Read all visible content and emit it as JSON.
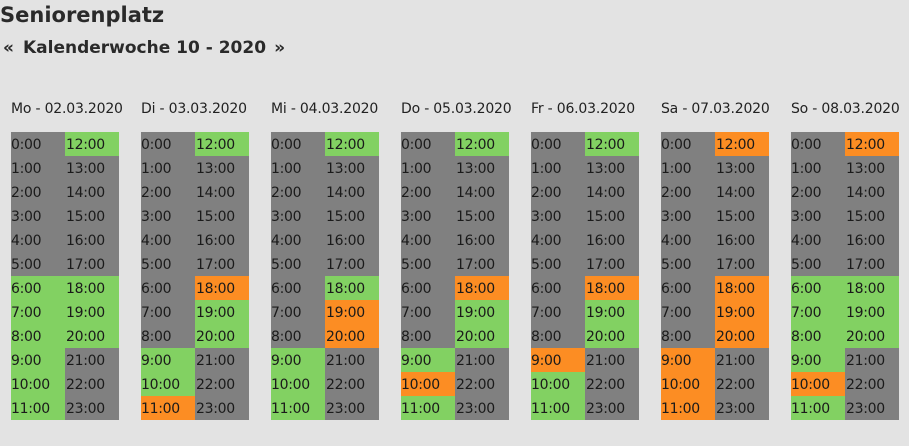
{
  "page": {
    "title": "Seniorenplatz",
    "week_title": "Kalenderwoche 10 - 2020",
    "prev_label": "«",
    "next_label": "»"
  },
  "colors": {
    "gray": "#808080",
    "green": "#82d162",
    "orange": "#fc8d23"
  },
  "days": [
    {
      "label": "Mo - 02.03.2020",
      "states": [
        "gray",
        "gray",
        "gray",
        "gray",
        "gray",
        "gray",
        "green",
        "green",
        "green",
        "green",
        "green",
        "green",
        "green",
        "gray",
        "gray",
        "gray",
        "gray",
        "gray",
        "green",
        "green",
        "green",
        "gray",
        "gray",
        "gray"
      ]
    },
    {
      "label": "Di - 03.03.2020",
      "states": [
        "gray",
        "gray",
        "gray",
        "gray",
        "gray",
        "gray",
        "gray",
        "gray",
        "gray",
        "green",
        "green",
        "orange",
        "green",
        "gray",
        "gray",
        "gray",
        "gray",
        "gray",
        "orange",
        "green",
        "green",
        "gray",
        "gray",
        "gray"
      ]
    },
    {
      "label": "Mi - 04.03.2020",
      "states": [
        "gray",
        "gray",
        "gray",
        "gray",
        "gray",
        "gray",
        "gray",
        "gray",
        "gray",
        "green",
        "green",
        "green",
        "green",
        "gray",
        "gray",
        "gray",
        "gray",
        "gray",
        "green",
        "orange",
        "orange",
        "gray",
        "gray",
        "gray"
      ]
    },
    {
      "label": "Do - 05.03.2020",
      "states": [
        "gray",
        "gray",
        "gray",
        "gray",
        "gray",
        "gray",
        "gray",
        "gray",
        "gray",
        "green",
        "orange",
        "green",
        "green",
        "gray",
        "gray",
        "gray",
        "gray",
        "gray",
        "orange",
        "green",
        "green",
        "gray",
        "gray",
        "gray"
      ]
    },
    {
      "label": "Fr - 06.03.2020",
      "states": [
        "gray",
        "gray",
        "gray",
        "gray",
        "gray",
        "gray",
        "gray",
        "gray",
        "gray",
        "orange",
        "green",
        "green",
        "green",
        "gray",
        "gray",
        "gray",
        "gray",
        "gray",
        "orange",
        "green",
        "green",
        "gray",
        "gray",
        "gray"
      ]
    },
    {
      "label": "Sa - 07.03.2020",
      "states": [
        "gray",
        "gray",
        "gray",
        "gray",
        "gray",
        "gray",
        "gray",
        "gray",
        "gray",
        "orange",
        "orange",
        "orange",
        "orange",
        "gray",
        "gray",
        "gray",
        "gray",
        "gray",
        "orange",
        "orange",
        "orange",
        "gray",
        "gray",
        "gray"
      ]
    },
    {
      "label": "So - 08.03.2020",
      "states": [
        "gray",
        "gray",
        "gray",
        "gray",
        "gray",
        "gray",
        "green",
        "green",
        "green",
        "green",
        "orange",
        "green",
        "orange",
        "gray",
        "gray",
        "gray",
        "gray",
        "gray",
        "green",
        "green",
        "green",
        "gray",
        "gray",
        "gray"
      ]
    }
  ],
  "hours": [
    "0:00",
    "1:00",
    "2:00",
    "3:00",
    "4:00",
    "5:00",
    "6:00",
    "7:00",
    "8:00",
    "9:00",
    "10:00",
    "11:00",
    "12:00",
    "13:00",
    "14:00",
    "15:00",
    "16:00",
    "17:00",
    "18:00",
    "19:00",
    "20:00",
    "21:00",
    "22:00",
    "23:00"
  ]
}
